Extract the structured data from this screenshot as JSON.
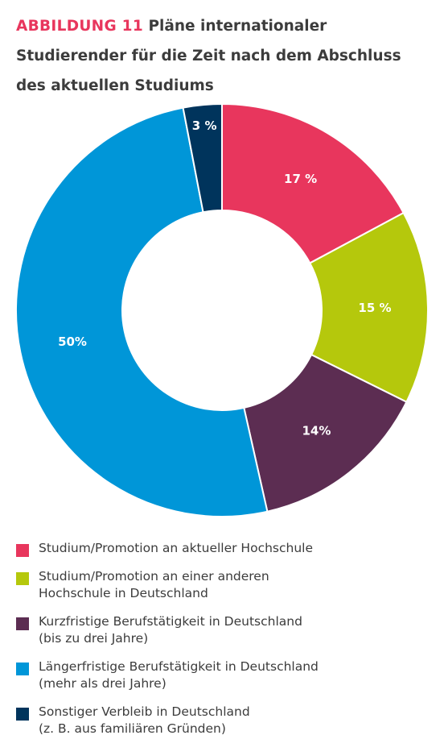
{
  "chart_data": {
    "type": "pie",
    "title_prefix": "ABBILDUNG 11",
    "title": "Pläne internationaler Studierender für die Zeit nach dem Abschluss des aktuellen Studiums",
    "slices": [
      {
        "label_line1": "Studium/Promotion an aktueller Hochschule",
        "label_line2": "",
        "value": 17,
        "value_label": "17 %",
        "color": "#e8365d"
      },
      {
        "label_line1": "Studium/Promotion an einer anderen",
        "label_line2": "Hochschule in Deutschland",
        "value": 15,
        "value_label": "15 %",
        "color": "#b5c80c"
      },
      {
        "label_line1": "Kurzfristige Berufstätigkeit in Deutschland",
        "label_line2": "(bis zu drei Jahre)",
        "value": 14,
        "value_label": "14%",
        "color": "#5c2d52"
      },
      {
        "label_line1": "Längerfristige Berufstätigkeit in Deutschland",
        "label_line2": "(mehr als drei Jahre)",
        "value": 50,
        "value_label": "50%",
        "color": "#0096d8"
      },
      {
        "label_line1": "Sonstiger Verbleib in Deutschland",
        "label_line2": "(z. B. aus familiären Gründen)",
        "value": 3,
        "value_label": "3 %",
        "color": "#00345c"
      }
    ],
    "legend_position": "bottom"
  }
}
